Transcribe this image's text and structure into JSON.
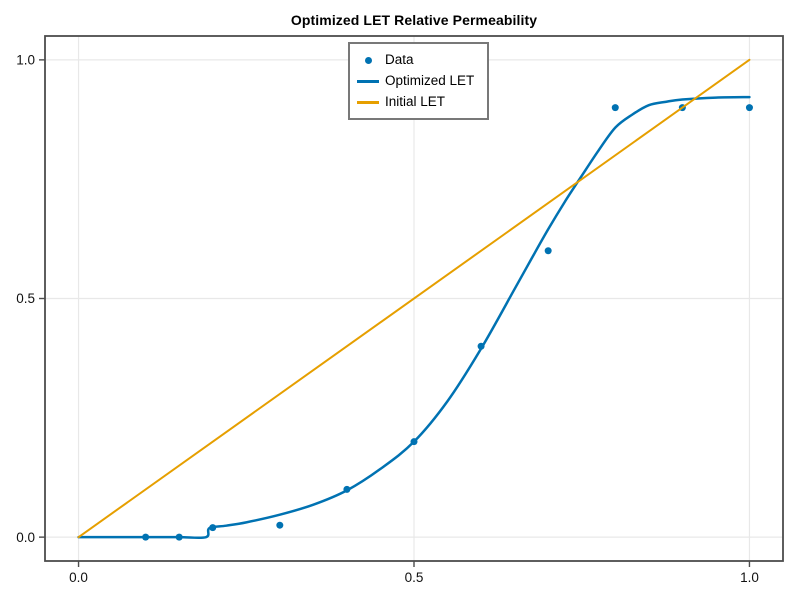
{
  "chart_data": {
    "type": "line",
    "title": "Optimized LET Relative Permeability",
    "xlabel": "",
    "ylabel": "",
    "xlim": [
      -0.05,
      1.05
    ],
    "ylim": [
      -0.05,
      1.05
    ],
    "grid": true,
    "legend_position": "top-center",
    "xticks": {
      "values": [
        0.0,
        0.5,
        1.0
      ],
      "labels": [
        "0.0",
        "0.5",
        "1.0"
      ]
    },
    "yticks": {
      "values": [
        0.0,
        0.5,
        1.0
      ],
      "labels": [
        "0.0",
        "0.5",
        "1.0"
      ]
    },
    "series": [
      {
        "name": "Data",
        "style": "scatter",
        "color": "#0072B2",
        "marker": "circle",
        "marker_radius": 3.5,
        "points": [
          [
            0.1,
            0.0
          ],
          [
            0.15,
            0.0
          ],
          [
            0.2,
            0.02
          ],
          [
            0.3,
            0.025
          ],
          [
            0.4,
            0.1
          ],
          [
            0.5,
            0.2
          ],
          [
            0.6,
            0.4
          ],
          [
            0.7,
            0.6
          ],
          [
            0.8,
            0.9
          ],
          [
            0.9,
            0.9
          ],
          [
            1.0,
            0.9
          ]
        ]
      },
      {
        "name": "Optimized LET",
        "style": "line",
        "color": "#0072B2",
        "line_width": 2.5,
        "smooth": true,
        "points": [
          [
            0.0,
            0.0
          ],
          [
            0.05,
            0.0
          ],
          [
            0.1,
            0.0
          ],
          [
            0.15,
            0.0
          ],
          [
            0.19,
            0.0
          ],
          [
            0.195,
            0.019
          ],
          [
            0.22,
            0.024
          ],
          [
            0.25,
            0.031
          ],
          [
            0.3,
            0.047
          ],
          [
            0.35,
            0.068
          ],
          [
            0.4,
            0.098
          ],
          [
            0.45,
            0.143
          ],
          [
            0.5,
            0.2
          ],
          [
            0.55,
            0.285
          ],
          [
            0.6,
            0.395
          ],
          [
            0.65,
            0.52
          ],
          [
            0.675,
            0.583
          ],
          [
            0.7,
            0.645
          ],
          [
            0.725,
            0.703
          ],
          [
            0.75,
            0.757
          ],
          [
            0.775,
            0.81
          ],
          [
            0.8,
            0.858
          ],
          [
            0.825,
            0.885
          ],
          [
            0.85,
            0.905
          ],
          [
            0.875,
            0.912
          ],
          [
            0.9,
            0.917
          ],
          [
            0.95,
            0.921
          ],
          [
            1.0,
            0.922
          ]
        ]
      },
      {
        "name": "Initial LET",
        "style": "line",
        "color": "#E69F00",
        "line_width": 2,
        "smooth": false,
        "points": [
          [
            0.0,
            0.0
          ],
          [
            1.0,
            1.0
          ]
        ]
      }
    ]
  },
  "legend": {
    "items": [
      {
        "label": "Data",
        "marker": "dot",
        "color": "#0072B2"
      },
      {
        "label": "Optimized LET",
        "marker": "line",
        "color": "#0072B2"
      },
      {
        "label": "Initial LET",
        "marker": "line",
        "color": "#E69F00"
      }
    ]
  },
  "colors": {
    "background": "#FFFFFF",
    "grid": "#E8E8E8",
    "spine": "#4D4D4D",
    "tick": "#4D4D4D",
    "tick_label": "#111111",
    "legend_border": "#787878"
  }
}
